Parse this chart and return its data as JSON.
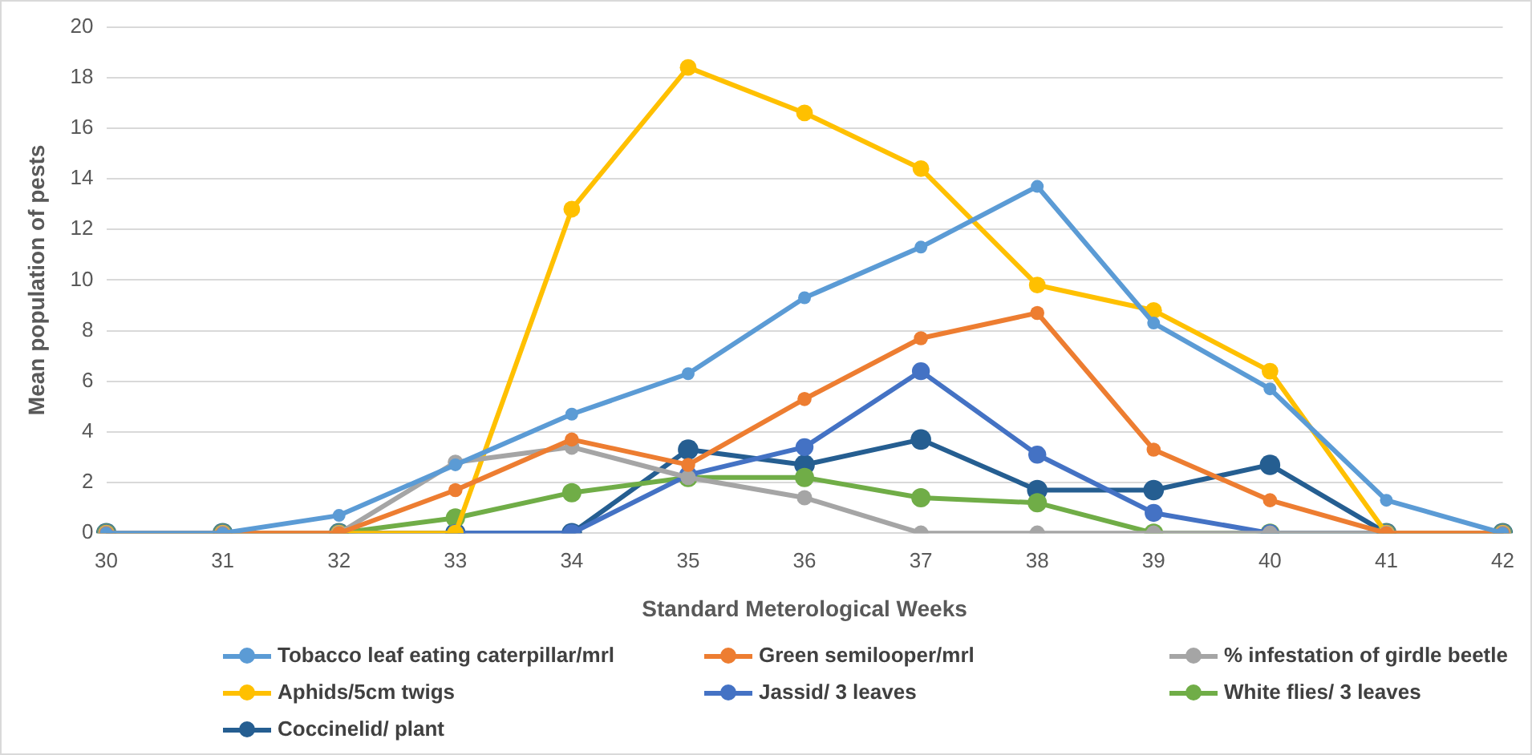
{
  "chart_data": {
    "type": "line",
    "xlabel": "Standard Meterological Weeks",
    "ylabel": "Mean population of pests",
    "categories": [
      "30",
      "31",
      "32",
      "33",
      "34",
      "35",
      "36",
      "37",
      "38",
      "39",
      "40",
      "41",
      "42"
    ],
    "ylim": [
      0,
      20
    ],
    "yticks": [
      0,
      2,
      4,
      6,
      8,
      10,
      12,
      14,
      16,
      18,
      20
    ],
    "grid": "y",
    "legend": "bottom",
    "marker": "circle",
    "line_style": "solid",
    "series": [
      {
        "name": "Tobacco leaf eating caterpillar/mrl",
        "color": "#5b9bd5",
        "values": [
          0,
          0,
          0.7,
          2.7,
          4.7,
          6.3,
          9.3,
          11.3,
          13.7,
          8.3,
          5.7,
          1.3,
          0
        ]
      },
      {
        "name": "Green semilooper/mrl",
        "color": "#ed7d31",
        "values": [
          0,
          0,
          0,
          1.7,
          3.7,
          2.7,
          5.3,
          7.7,
          8.7,
          3.3,
          1.3,
          0,
          0
        ]
      },
      {
        "name": "% infestation of girdle beetle",
        "color": "#a5a5a5",
        "values": [
          0,
          0,
          0,
          2.8,
          3.4,
          2.2,
          1.4,
          0,
          0,
          0,
          0,
          0,
          0
        ]
      },
      {
        "name": "Aphids/5cm twigs",
        "color": "#ffc000",
        "values": [
          0,
          0,
          0,
          0,
          12.8,
          18.4,
          16.6,
          14.4,
          9.8,
          8.8,
          6.4,
          0,
          0
        ]
      },
      {
        "name": "Jassid/ 3 leaves",
        "color": "#4472c4",
        "values": [
          0,
          0,
          0,
          0,
          0,
          2.3,
          3.4,
          6.4,
          3.1,
          0.8,
          0,
          0,
          0
        ]
      },
      {
        "name": "White flies/ 3 leaves",
        "color": "#70ad47",
        "values": [
          0,
          0,
          0,
          0.6,
          1.6,
          2.2,
          2.2,
          1.4,
          1.2,
          0,
          0,
          0,
          0
        ]
      },
      {
        "name": "Coccinelid/ plant",
        "color": "#255e91",
        "values": [
          0,
          0,
          0,
          0,
          0,
          3.3,
          2.7,
          3.7,
          1.7,
          1.7,
          2.7,
          0,
          0
        ]
      }
    ]
  }
}
